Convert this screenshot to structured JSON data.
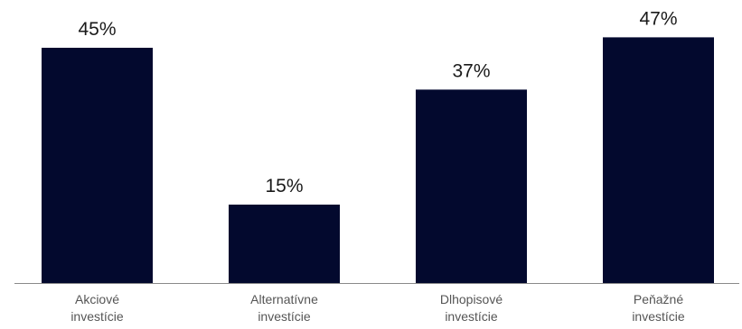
{
  "chart_data": {
    "type": "bar",
    "categories": [
      [
        "Akciové",
        "investície"
      ],
      [
        "Alternatívne",
        "investície"
      ],
      [
        "Dlhopisové",
        "investície"
      ],
      [
        "Peňažné",
        "investície"
      ]
    ],
    "values": [
      45,
      15,
      37,
      47
    ],
    "value_labels": [
      "45%",
      "15%",
      "37%",
      "47%"
    ],
    "unit": "%",
    "ylim": [
      0,
      50
    ],
    "grid": false,
    "legend": "none",
    "title": "",
    "xlabel": "",
    "ylabel": ""
  },
  "colors": {
    "bar": "#03092e",
    "axis": "#8a8a8a",
    "value_text": "#1a1a1a",
    "label_text": "#555555"
  }
}
